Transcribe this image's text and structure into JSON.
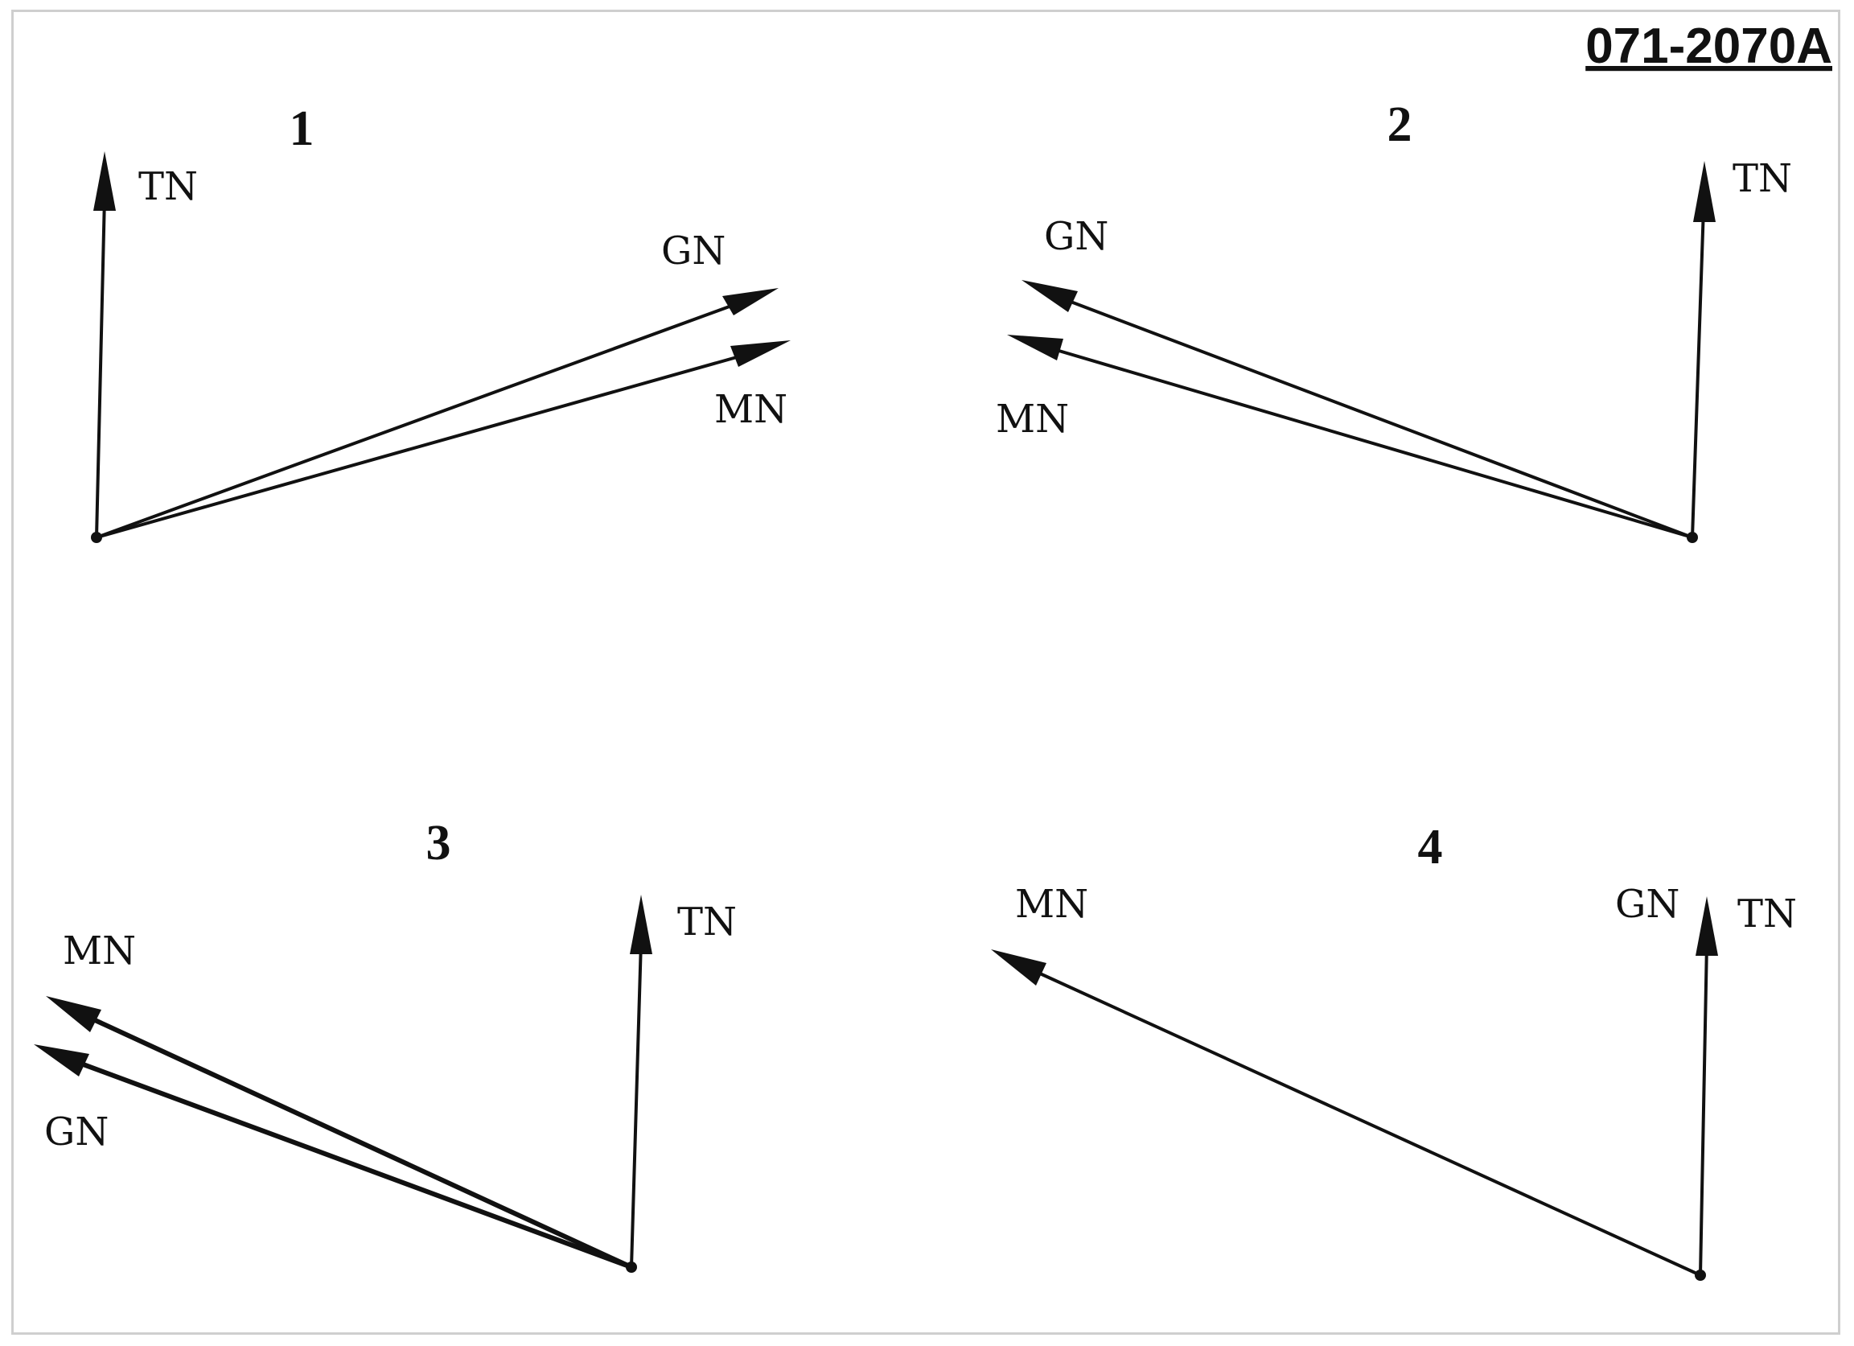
{
  "reference_code": "071-2070A",
  "diagrams": [
    {
      "number": "1",
      "labels": {
        "tn": "TN",
        "gn": "GN",
        "mn": "MN"
      }
    },
    {
      "number": "2",
      "labels": {
        "tn": "TN",
        "gn": "GN",
        "mn": "MN"
      }
    },
    {
      "number": "3",
      "labels": {
        "tn": "TN",
        "mn": "MN",
        "gn": "GN"
      }
    },
    {
      "number": "4",
      "labels": {
        "mn": "MN",
        "gn": "GN",
        "tn": "TN"
      }
    }
  ]
}
